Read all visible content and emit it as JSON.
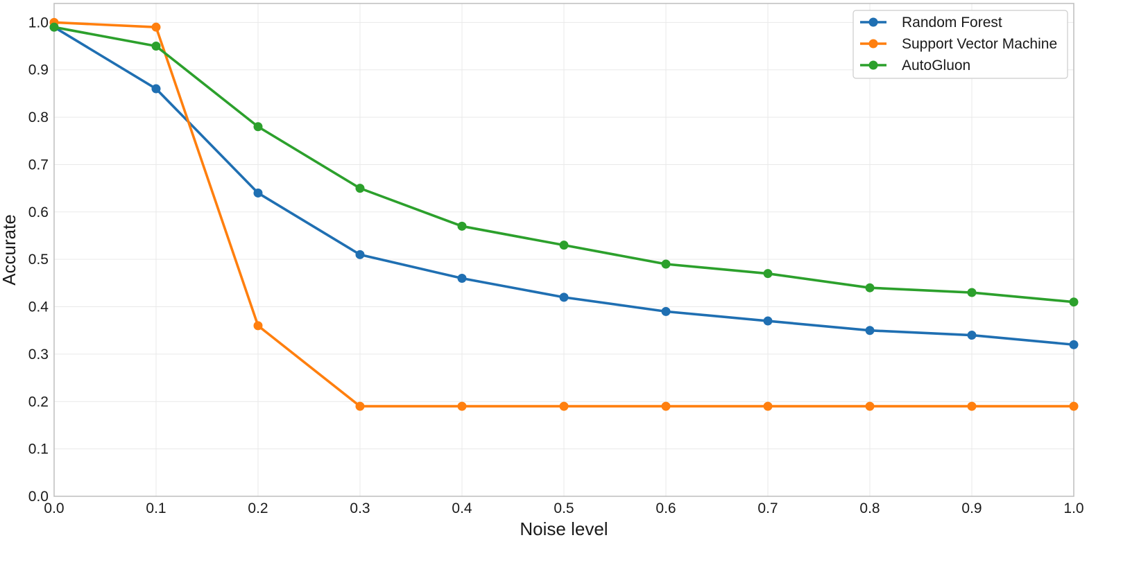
{
  "chart_data": {
    "type": "line",
    "title": "",
    "xlabel": "Noise level",
    "ylabel": "Accurate",
    "x": [
      0.0,
      0.1,
      0.2,
      0.3,
      0.4,
      0.5,
      0.6,
      0.7,
      0.8,
      0.9,
      1.0
    ],
    "xlim": [
      0.0,
      1.0
    ],
    "ylim": [
      0.0,
      1.04
    ],
    "xticks": [
      "0.0",
      "0.1",
      "0.2",
      "0.3",
      "0.4",
      "0.5",
      "0.6",
      "0.7",
      "0.8",
      "0.9",
      "1.0"
    ],
    "yticks": [
      "0.0",
      "0.1",
      "0.2",
      "0.3",
      "0.4",
      "0.5",
      "0.6",
      "0.7",
      "0.8",
      "0.9",
      "1.0"
    ],
    "grid": true,
    "legend_position": "top-right",
    "series": [
      {
        "name": "Random Forest",
        "color": "#1f6fb2",
        "values": [
          0.99,
          0.86,
          0.64,
          0.51,
          0.46,
          0.42,
          0.39,
          0.37,
          0.35,
          0.34,
          0.32
        ]
      },
      {
        "name": "Support Vector Machine",
        "color": "#ff7f0e",
        "values": [
          1.0,
          0.99,
          0.36,
          0.19,
          0.19,
          0.19,
          0.19,
          0.19,
          0.19,
          0.19,
          0.19
        ]
      },
      {
        "name": "AutoGluon",
        "color": "#2ca02c",
        "values": [
          0.99,
          0.95,
          0.78,
          0.65,
          0.57,
          0.53,
          0.49,
          0.47,
          0.44,
          0.43,
          0.41
        ]
      }
    ]
  }
}
